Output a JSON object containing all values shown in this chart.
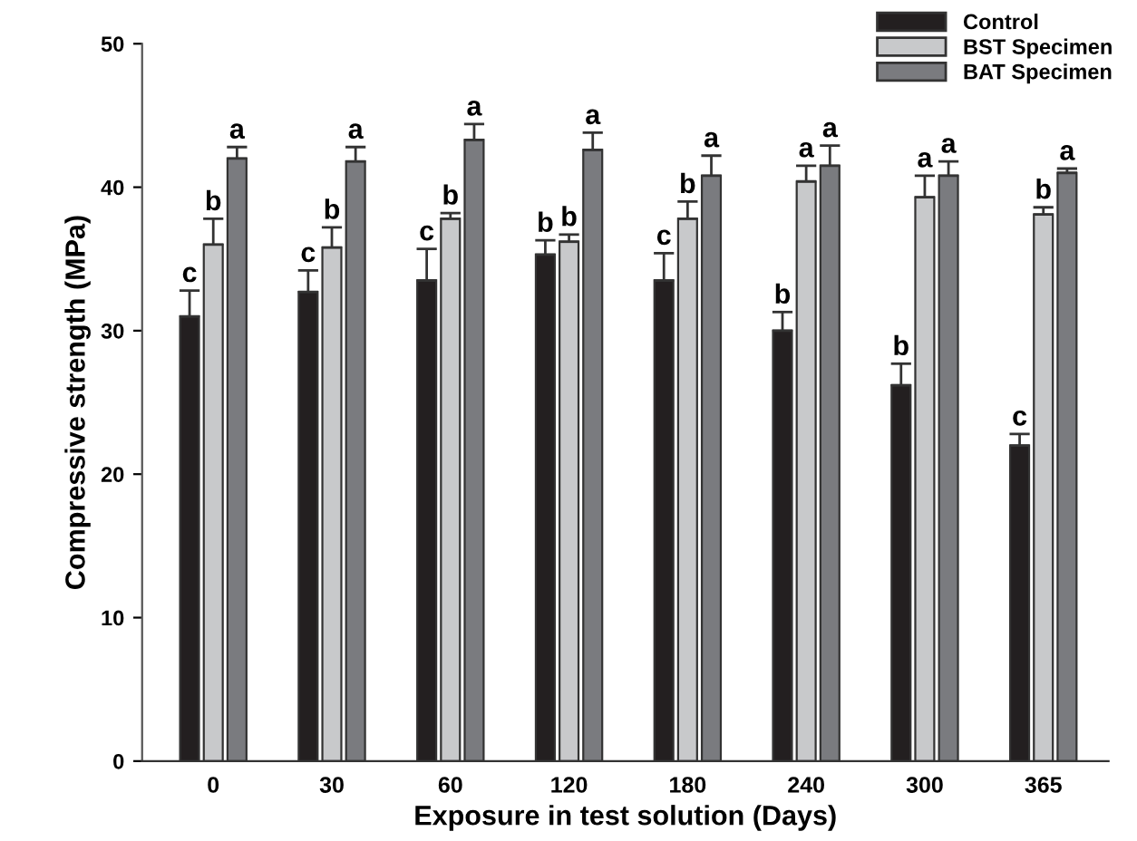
{
  "chart_data": {
    "type": "bar",
    "xlabel": "Exposure in test solution (Days)",
    "ylabel": "Compressive strength (MPa)",
    "categories": [
      "0",
      "30",
      "60",
      "120",
      "180",
      "240",
      "300",
      "365"
    ],
    "series": [
      {
        "name": "Control",
        "color": "#231f20",
        "values": [
          31,
          32.7,
          33.5,
          35.3,
          33.5,
          30,
          26.2,
          22
        ],
        "errors": [
          [
            31,
            32.8
          ],
          [
            32.7,
            34.2
          ],
          [
            33.5,
            35.7
          ],
          [
            35.3,
            36.3
          ],
          [
            33.5,
            35.4
          ],
          [
            30,
            31.3
          ],
          [
            26.2,
            27.7
          ],
          [
            22,
            22.8
          ]
        ]
      },
      {
        "name": "BST Specimen",
        "color": "#c8c9cb",
        "values": [
          36,
          35.8,
          37.8,
          36.2,
          37.8,
          40.4,
          39.3,
          38.1
        ],
        "errors": [
          [
            36,
            37.8
          ],
          [
            35.8,
            37.2
          ],
          [
            37.8,
            38.2
          ],
          [
            36.2,
            36.7
          ],
          [
            37.8,
            39
          ],
          [
            40.4,
            41.5
          ],
          [
            39.3,
            40.8
          ],
          [
            38.1,
            38.6
          ]
        ]
      },
      {
        "name": "BAT Specimen",
        "color": "#7a7b7f",
        "values": [
          42,
          41.8,
          43.3,
          42.6,
          40.8,
          41.5,
          40.8,
          41
        ],
        "errors": [
          [
            42,
            42.8
          ],
          [
            41.8,
            42.8
          ],
          [
            43.3,
            44.4
          ],
          [
            42.6,
            43.8
          ],
          [
            40.8,
            42.2
          ],
          [
            41.5,
            42.9
          ],
          [
            40.8,
            41.8
          ],
          [
            41,
            41.3
          ]
        ]
      }
    ],
    "annotations": [
      "c",
      "b",
      "a",
      "c",
      "b",
      "a",
      "c",
      "b",
      "a",
      "b",
      "b",
      "a",
      "c",
      "b",
      "a",
      "b",
      "a",
      "a",
      "b",
      "a",
      "a",
      "c",
      "b",
      "a"
    ],
    "ylim": [
      0,
      50
    ],
    "yticks": [
      0,
      10,
      20,
      30,
      40,
      50
    ],
    "grid": false,
    "legend": "top right"
  }
}
